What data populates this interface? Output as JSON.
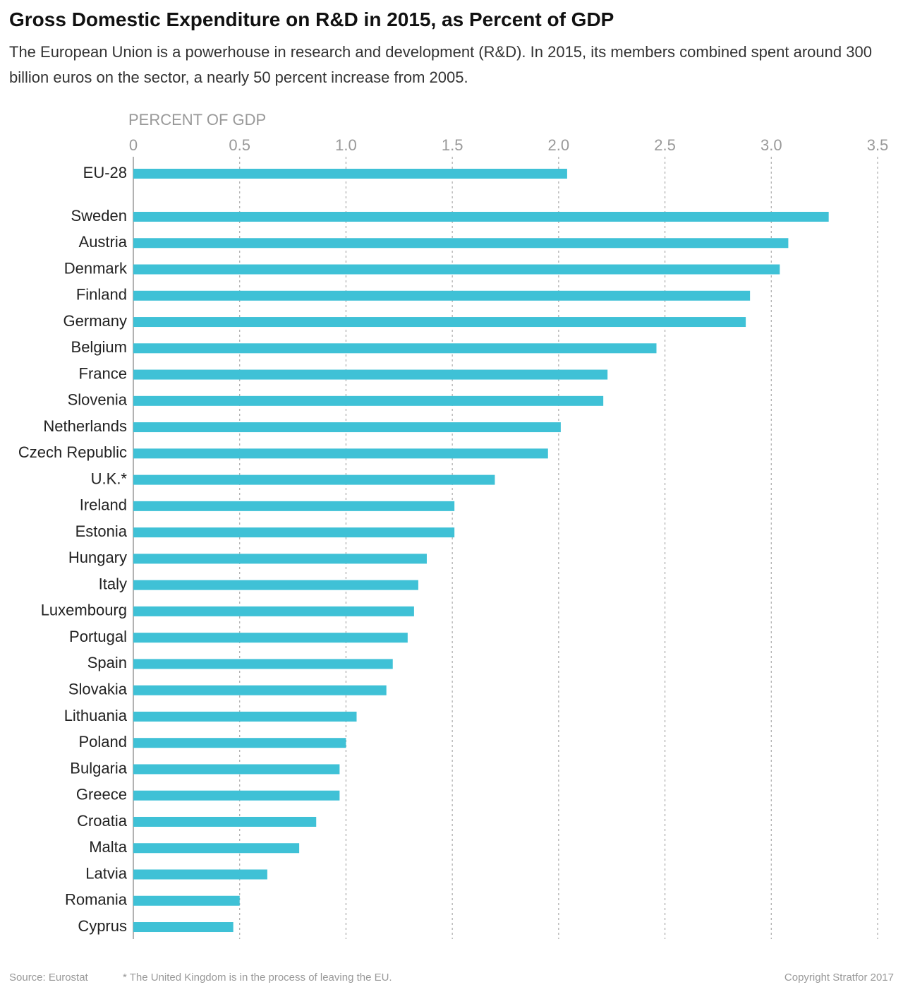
{
  "chart_data": {
    "type": "bar",
    "orientation": "horizontal",
    "title": "Gross Domestic Expenditure on R&D in 2015, as Percent of GDP",
    "subtitle": "The European Union is a powerhouse in research and development (R&D). In 2015, its members combined spent around 300 billion euros on the sector, a nearly 50 percent increase from 2005.",
    "x_label": "PERCENT OF GDP",
    "categories": [
      "EU-28",
      "Sweden",
      "Austria",
      "Denmark",
      "Finland",
      "Germany",
      "Belgium",
      "France",
      "Slovenia",
      "Netherlands",
      "Czech Republic",
      "U.K.*",
      "Ireland",
      "Estonia",
      "Hungary",
      "Italy",
      "Luxembourg",
      "Portugal",
      "Spain",
      "Slovakia",
      "Lithuania",
      "Poland",
      "Bulgaria",
      "Greece",
      "Croatia",
      "Malta",
      "Latvia",
      "Romania",
      "Cyprus"
    ],
    "values": [
      2.04,
      3.27,
      3.08,
      3.04,
      2.9,
      2.88,
      2.46,
      2.23,
      2.21,
      2.01,
      1.95,
      1.7,
      1.51,
      1.51,
      1.38,
      1.34,
      1.32,
      1.29,
      1.22,
      1.19,
      1.05,
      1.0,
      0.97,
      0.97,
      0.86,
      0.78,
      0.63,
      0.5,
      0.47
    ],
    "color": "#3fc1d6",
    "xlim": [
      0,
      3.5
    ],
    "xticks": [
      0,
      0.5,
      {
        "value": 1,
        "label": "1.0"
      },
      1.5,
      {
        "value": 2,
        "label": "2.0"
      },
      2.5,
      {
        "value": 3,
        "label": "3.0"
      },
      3.5
    ],
    "grid": true,
    "source": "Source: Eurostat",
    "note": "* The United Kingdom is in the process of leaving the EU.",
    "copyright": "Copyright Stratfor 2017"
  }
}
